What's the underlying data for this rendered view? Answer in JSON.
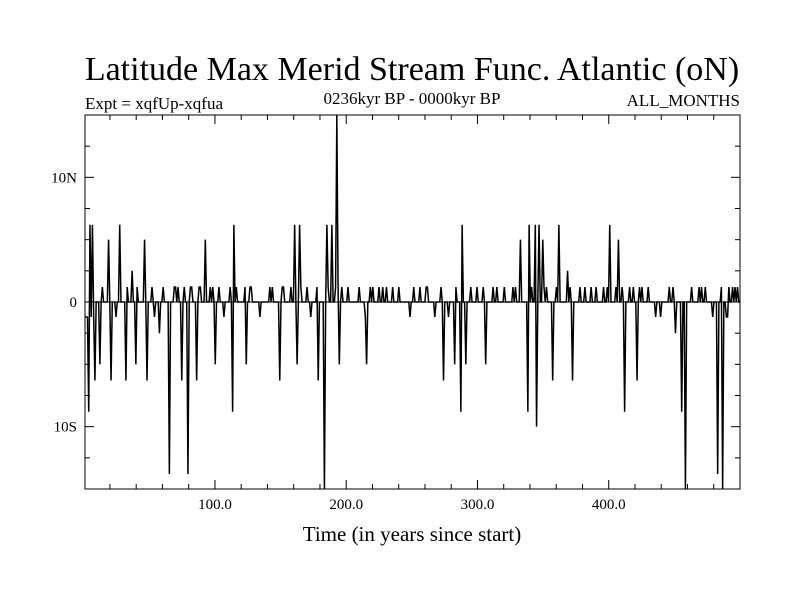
{
  "chart_data": {
    "type": "line",
    "title": "Latitude Max Merid Stream Func. Atlantic (oN)",
    "subtitle_left": "Expt = xqfUp-xqfua",
    "subtitle_center": "0236kyr BP - 0000kyr BP",
    "subtitle_right": "ALL_MONTHS",
    "xlabel": "Time (in years since start)",
    "ylabel": "",
    "xlim": [
      1,
      500
    ],
    "ylim": [
      -15,
      15
    ],
    "x_ticks": [
      100,
      200,
      300,
      400
    ],
    "x_tick_labels": [
      "100.0",
      "200.0",
      "300.0",
      "400.0"
    ],
    "y_ticks": [
      10,
      0,
      -10
    ],
    "y_tick_labels": [
      "10N",
      "0",
      "10S"
    ],
    "grid": false,
    "series": [
      {
        "values": [
          -1.2,
          -1.2,
          -1.2,
          -8.8,
          6.2,
          -1.2,
          6.2,
          -1.2,
          -6.3,
          0,
          0,
          0,
          -5,
          0,
          1.2,
          0,
          0,
          0,
          0,
          5,
          0,
          -6.3,
          0,
          0,
          0,
          -1.2,
          0,
          0,
          6.2,
          0,
          0,
          0,
          0,
          -6.3,
          1.2,
          0,
          0,
          0,
          2.5,
          0,
          0,
          -5,
          1.2,
          0,
          0,
          0,
          0,
          0,
          5,
          0,
          -6.3,
          0,
          0,
          0,
          1.2,
          0,
          -1.2,
          0,
          0,
          0,
          -2.5,
          0,
          0,
          1.2,
          0,
          0,
          0,
          0,
          -13.8,
          0,
          0,
          0,
          1.2,
          1.2,
          0,
          1.2,
          0,
          0,
          -6.3,
          0,
          1.2,
          0,
          0,
          -13.8,
          0,
          1.2,
          1.2,
          0,
          0,
          0,
          -6.3,
          0,
          1.2,
          1.2,
          0,
          0,
          0,
          5,
          0,
          0,
          0,
          1.2,
          0,
          1.2,
          0,
          -5,
          0,
          0,
          1.2,
          0,
          0,
          0,
          -1.2,
          0,
          0,
          0,
          0,
          1.2,
          0,
          -8.8,
          6.2,
          0,
          1.2,
          0,
          0,
          0,
          0,
          0,
          0,
          1.2,
          -5,
          0,
          0,
          1.2,
          1.2,
          0,
          0,
          0,
          0,
          0,
          0,
          -1.2,
          0,
          0,
          0,
          0,
          0,
          0,
          0,
          1.2,
          0,
          1.2,
          0,
          0,
          0,
          0,
          0,
          -6.3,
          0,
          1.2,
          1.2,
          0,
          0,
          0,
          0,
          0,
          1.2,
          0,
          0,
          6.2,
          0,
          -5,
          0,
          6.2,
          1.2,
          0,
          0,
          0,
          0,
          1.2,
          0,
          0,
          -1.2,
          0,
          0,
          0,
          0,
          1.2,
          -6.3,
          0,
          0,
          0,
          0,
          -15,
          0,
          6.2,
          1.2,
          0,
          0,
          6.2,
          0,
          0,
          1.2,
          15,
          1.2,
          -5,
          0,
          1.2,
          0,
          0,
          0,
          0,
          1.2,
          0,
          0,
          0,
          0,
          0,
          0,
          0,
          0,
          1.2,
          0,
          0,
          0,
          0,
          -1.2,
          -5,
          0,
          0,
          1.2,
          0,
          1.2,
          0,
          0,
          0,
          0,
          1.2,
          0,
          0,
          1.2,
          0,
          0,
          1.2,
          0,
          0,
          0,
          0,
          1.2,
          0,
          0,
          0,
          0,
          1.2,
          0,
          0,
          0,
          0,
          0,
          0,
          0,
          0,
          -1.2,
          0,
          0,
          1.2,
          0,
          0,
          0,
          0,
          1.2,
          0,
          0,
          0,
          0,
          1.2,
          1.2,
          0,
          0,
          0,
          0,
          0,
          -1.2,
          0,
          0,
          0,
          0,
          1.2,
          0,
          -6.3,
          0,
          0,
          0,
          -1.2,
          0,
          0,
          0,
          0,
          -5,
          1.2,
          0,
          0,
          0,
          -8.8,
          6.2,
          0,
          0,
          -5,
          0,
          0,
          0,
          1.2,
          0,
          0,
          0,
          0,
          1.2,
          0,
          0,
          0,
          0,
          1.2,
          0,
          -5,
          0,
          0,
          0,
          0,
          0,
          1.2,
          0,
          0,
          1.2,
          0,
          0,
          0,
          0,
          0,
          1.2,
          0,
          0,
          0,
          0,
          0,
          0,
          1.2,
          0,
          1.2,
          0,
          0,
          0,
          5,
          0,
          0,
          0,
          0,
          0,
          -8.8,
          6.2,
          0,
          1.2,
          0,
          0,
          6.2,
          -10,
          0,
          6.2,
          0,
          0,
          5,
          1.2,
          0,
          1.2,
          0,
          0,
          0,
          0,
          -6.3,
          0,
          0,
          1.2,
          0,
          6.2,
          0,
          0,
          0,
          0,
          0,
          0,
          2.5,
          0,
          1.2,
          0,
          -6.3,
          0,
          0,
          0,
          0,
          0,
          1.2,
          0,
          0,
          0,
          1.2,
          0,
          0,
          0,
          0,
          1.2,
          0,
          0,
          0,
          1.2,
          0,
          0,
          0,
          0,
          0,
          1.2,
          0,
          0,
          1.2,
          0,
          6.2,
          0,
          0,
          0,
          0,
          1.2,
          0,
          5,
          0,
          0,
          1.2,
          0,
          -8.8,
          0,
          0,
          0,
          1.2,
          0,
          0,
          1.2,
          0,
          0,
          -6.3,
          0,
          1.2,
          0,
          1.2,
          0,
          0,
          0,
          0,
          1.2,
          0,
          0,
          0,
          0,
          0,
          -1.2,
          0,
          0,
          0,
          -1.2,
          0,
          0,
          0,
          0,
          0,
          0,
          1.2,
          0,
          0,
          1.2,
          0,
          -2.5,
          0,
          0,
          0,
          0,
          -8.8,
          0,
          0,
          -15,
          0,
          0,
          0,
          0,
          1.2,
          0,
          0,
          0,
          0,
          0,
          1.2,
          0,
          1.2,
          0,
          0,
          1.2,
          0,
          0,
          0,
          0,
          0,
          -1.2,
          0,
          0,
          0,
          -13.8,
          0,
          0,
          1.2,
          -15,
          0,
          0,
          -1.2,
          -1.2,
          1.2,
          0,
          0,
          1.2,
          0,
          1.2,
          0,
          1.2,
          0,
          0
        ]
      }
    ]
  }
}
